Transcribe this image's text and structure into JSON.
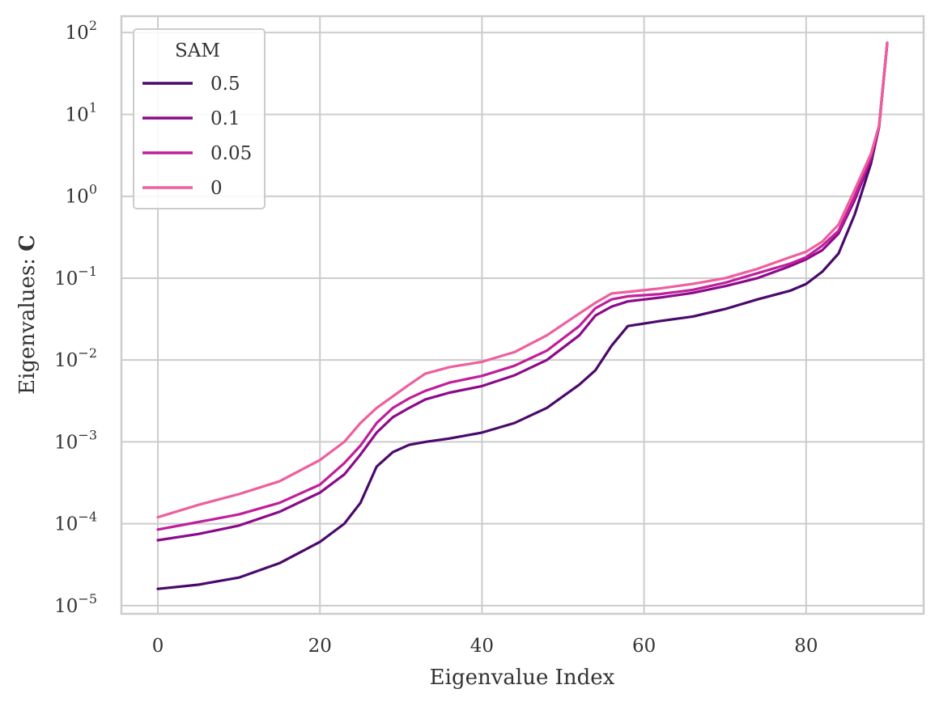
{
  "chart_data": {
    "type": "line",
    "title": "",
    "xlabel": "Eigenvalue Index",
    "ylabel_prefix": "Eigenvalues: ",
    "ylabel_symbol": "C",
    "yscale": "log",
    "xlim": [
      -4.5,
      94.5
    ],
    "ylim_exp": [
      -5.1,
      2.2
    ],
    "x_ticks": [
      0,
      20,
      40,
      60,
      80
    ],
    "x_tick_labels": [
      "0",
      "20",
      "40",
      "60",
      "80"
    ],
    "y_ticks": [
      -5,
      -4,
      -3,
      -2,
      -1,
      0,
      1,
      2
    ],
    "y_tick_labels": [
      {
        "base": "10",
        "exp": "−5"
      },
      {
        "base": "10",
        "exp": "−4"
      },
      {
        "base": "10",
        "exp": "−3"
      },
      {
        "base": "10",
        "exp": "−2"
      },
      {
        "base": "10",
        "exp": "−1"
      },
      {
        "base": "10",
        "exp": "0"
      },
      {
        "base": "10",
        "exp": "1"
      },
      {
        "base": "10",
        "exp": "2"
      }
    ],
    "grid": true,
    "legend": {
      "title": "SAM",
      "placement": "upper-left"
    },
    "x": [
      0,
      5,
      10,
      15,
      20,
      23,
      25,
      27,
      29,
      31,
      33,
      36,
      40,
      44,
      48,
      52,
      54,
      56,
      58,
      62,
      66,
      70,
      74,
      78,
      80,
      82,
      84,
      86,
      88,
      89,
      90
    ],
    "series": [
      {
        "name": "0.5",
        "color": "#4a0a6b",
        "values": [
          1.6e-05,
          1.8e-05,
          2.2e-05,
          3.3e-05,
          6e-05,
          0.0001,
          0.00018,
          0.0005,
          0.00075,
          0.00092,
          0.001,
          0.0011,
          0.0013,
          0.0017,
          0.0026,
          0.005,
          0.0075,
          0.015,
          0.026,
          0.03,
          0.034,
          0.042,
          0.055,
          0.07,
          0.085,
          0.12,
          0.2,
          0.6,
          2.5,
          7,
          75
        ]
      },
      {
        "name": "0.1",
        "color": "#8b0a8a",
        "values": [
          6.3e-05,
          7.5e-05,
          9.5e-05,
          0.00014,
          0.00024,
          0.0004,
          0.0007,
          0.0013,
          0.002,
          0.0026,
          0.0033,
          0.004,
          0.0048,
          0.0065,
          0.01,
          0.02,
          0.035,
          0.045,
          0.052,
          0.058,
          0.066,
          0.08,
          0.1,
          0.14,
          0.17,
          0.22,
          0.35,
          0.9,
          2.8,
          7,
          73
        ]
      },
      {
        "name": "0.05",
        "color": "#c01f9a",
        "values": [
          8.5e-05,
          0.000105,
          0.00013,
          0.00018,
          0.0003,
          0.00055,
          0.0009,
          0.0017,
          0.0026,
          0.0034,
          0.0042,
          0.0053,
          0.0064,
          0.0085,
          0.013,
          0.026,
          0.043,
          0.055,
          0.06,
          0.064,
          0.072,
          0.088,
          0.115,
          0.15,
          0.18,
          0.25,
          0.38,
          1,
          3,
          7.2,
          74
        ]
      },
      {
        "name": "0",
        "color": "#ee5f9d",
        "values": [
          0.00012,
          0.00017,
          0.00023,
          0.00033,
          0.0006,
          0.001,
          0.0017,
          0.0026,
          0.0036,
          0.005,
          0.0068,
          0.0082,
          0.0095,
          0.0125,
          0.02,
          0.037,
          0.05,
          0.065,
          0.068,
          0.075,
          0.085,
          0.1,
          0.13,
          0.18,
          0.21,
          0.28,
          0.45,
          1.2,
          3.3,
          7.3,
          75
        ]
      }
    ]
  }
}
